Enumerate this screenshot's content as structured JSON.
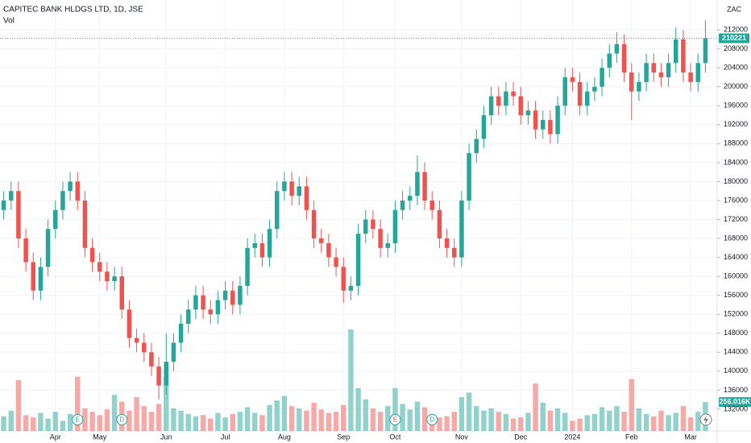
{
  "chart_data": {
    "type": "candlestick",
    "title": "CAPITEC BANK HLDGS LTD, 1D, JSE",
    "volume_label": "Vol",
    "currency": "ZAC",
    "up_color": "#26a69a",
    "down_color": "#ef5350",
    "grid": true,
    "ylim": [
      127400,
      218300
    ],
    "yticks": [
      132000,
      136000,
      140000,
      144000,
      148000,
      152000,
      156000,
      160000,
      164000,
      168000,
      172000,
      176000,
      180000,
      184000,
      188000,
      192000,
      196000,
      200000,
      204000,
      208000,
      212000
    ],
    "vlim": [
      0,
      1000000
    ],
    "categories": [
      null,
      null,
      null,
      null,
      null,
      null,
      null,
      "Apr",
      null,
      null,
      null,
      null,
      null,
      "May",
      null,
      null,
      null,
      null,
      null,
      null,
      null,
      null,
      "Jun",
      null,
      null,
      null,
      null,
      null,
      null,
      null,
      "Jul",
      null,
      null,
      null,
      null,
      null,
      null,
      null,
      "Aug",
      null,
      null,
      null,
      null,
      null,
      null,
      null,
      "Sep",
      null,
      null,
      null,
      null,
      null,
      null,
      "Oct",
      null,
      null,
      null,
      null,
      null,
      null,
      null,
      null,
      "Nov",
      null,
      null,
      null,
      null,
      null,
      null,
      null,
      "Dec",
      null,
      null,
      null,
      null,
      null,
      null,
      "2024",
      null,
      null,
      null,
      null,
      null,
      null,
      null,
      "Feb",
      null,
      null,
      null,
      null,
      null,
      null,
      null,
      "Mar",
      null,
      null
    ],
    "open": [
      174000,
      176000,
      178000,
      168000,
      163000,
      157000,
      162000,
      170000,
      174000,
      178000,
      180000,
      176000,
      166000,
      163000,
      161000,
      159000,
      160000,
      153000,
      147000,
      146000,
      144000,
      141000,
      137000,
      142000,
      146000,
      150000,
      153000,
      156000,
      153000,
      152000,
      155000,
      157000,
      154000,
      158000,
      166000,
      167000,
      164000,
      170000,
      178000,
      180000,
      177000,
      179000,
      174000,
      168000,
      167000,
      164000,
      162000,
      157000,
      158000,
      169000,
      172000,
      170000,
      166000,
      167000,
      174000,
      176000,
      177000,
      182000,
      176000,
      174000,
      168000,
      166000,
      164000,
      176000,
      186000,
      189000,
      194000,
      198000,
      196000,
      199000,
      198000,
      194000,
      195000,
      191000,
      193000,
      190000,
      196000,
      202000,
      201000,
      196000,
      199000,
      200000,
      204000,
      207000,
      209000,
      203000,
      199000,
      201000,
      205000,
      203000,
      202000,
      205000,
      210000,
      203000,
      201000,
      205000
    ],
    "high": [
      178000,
      180000,
      180000,
      170000,
      165000,
      164000,
      172000,
      176000,
      180000,
      182000,
      182000,
      178000,
      168000,
      165000,
      163000,
      162000,
      162000,
      155000,
      149000,
      148000,
      146000,
      143000,
      148000,
      148000,
      152000,
      155000,
      158000,
      158000,
      155000,
      157000,
      159000,
      159000,
      160000,
      168000,
      169000,
      169000,
      172000,
      180000,
      182000,
      182000,
      181000,
      181000,
      176000,
      170000,
      169000,
      166000,
      164000,
      160000,
      171000,
      174000,
      174000,
      172000,
      169000,
      176000,
      178000,
      179000,
      185500,
      184000,
      178000,
      176000,
      170000,
      168000,
      178000,
      188000,
      191000,
      196000,
      200000,
      200000,
      201000,
      201000,
      200000,
      197000,
      197000,
      195000,
      195000,
      198000,
      204000,
      204000,
      203000,
      201000,
      202000,
      206000,
      209000,
      211500,
      211000,
      205000,
      203000,
      207000,
      207000,
      205000,
      207000,
      212500,
      212000,
      205000,
      207000,
      214000
    ],
    "low": [
      172000,
      174000,
      166000,
      161000,
      155000,
      155000,
      160000,
      168000,
      172000,
      176000,
      174000,
      164000,
      161000,
      159000,
      157000,
      157000,
      151000,
      145000,
      144000,
      142000,
      139000,
      134000,
      135000,
      140000,
      144000,
      148000,
      151000,
      151000,
      150000,
      150000,
      153000,
      152000,
      152000,
      156000,
      164000,
      162000,
      162000,
      168000,
      176000,
      175000,
      175000,
      172000,
      166000,
      165000,
      162000,
      160000,
      154500,
      155000,
      156000,
      167000,
      168000,
      164000,
      164000,
      165000,
      172000,
      174000,
      175000,
      174000,
      172000,
      166000,
      164000,
      162000,
      162000,
      174000,
      184000,
      187000,
      192000,
      194000,
      194000,
      196000,
      192000,
      192000,
      189000,
      189000,
      188000,
      188000,
      194000,
      199000,
      194000,
      194000,
      197000,
      198000,
      202000,
      205000,
      201000,
      193000,
      197000,
      199000,
      201000,
      200000,
      200000,
      203000,
      201000,
      199000,
      199000,
      203000
    ],
    "close": [
      176000,
      178000,
      168000,
      163000,
      157000,
      162000,
      170000,
      174000,
      178000,
      180000,
      176000,
      166000,
      163000,
      161000,
      159000,
      160000,
      153000,
      147000,
      146000,
      144000,
      141000,
      137000,
      142000,
      146000,
      150000,
      153000,
      156000,
      153000,
      152000,
      155000,
      157000,
      154000,
      158000,
      166000,
      167000,
      164000,
      170000,
      178000,
      180000,
      177000,
      179000,
      174000,
      168000,
      167000,
      164000,
      162000,
      157000,
      158000,
      169000,
      172000,
      170000,
      166000,
      167000,
      174000,
      176000,
      177000,
      182000,
      176000,
      174000,
      168000,
      166000,
      164000,
      176000,
      186000,
      189000,
      194000,
      198000,
      196000,
      199000,
      198000,
      194000,
      195000,
      191000,
      193000,
      190000,
      196000,
      202000,
      201000,
      196000,
      199000,
      200000,
      204000,
      207000,
      209000,
      203000,
      199000,
      201000,
      205000,
      203000,
      202000,
      205000,
      210000,
      203000,
      201000,
      205000,
      210221
    ],
    "volume": [
      130000,
      180000,
      450000,
      140000,
      120000,
      160000,
      110000,
      170000,
      90000,
      150000,
      480000,
      200000,
      170000,
      140000,
      190000,
      320000,
      260000,
      180000,
      300000,
      220000,
      170000,
      240000,
      480000,
      200000,
      180000,
      150000,
      130000,
      140000,
      110000,
      160000,
      120000,
      150000,
      170000,
      210000,
      160000,
      140000,
      230000,
      270000,
      310000,
      220000,
      200000,
      180000,
      250000,
      190000,
      160000,
      170000,
      230000,
      900000,
      380000,
      280000,
      200000,
      170000,
      220000,
      380000,
      240000,
      190000,
      260000,
      210000,
      150000,
      120000,
      130000,
      170000,
      300000,
      340000,
      220000,
      180000,
      200000,
      170000,
      150000,
      110000,
      120000,
      160000,
      420000,
      250000,
      180000,
      200000,
      160000,
      90000,
      110000,
      140000,
      150000,
      210000,
      180000,
      220000,
      170000,
      460000,
      200000,
      150000,
      130000,
      180000,
      140000,
      160000,
      220000,
      120000,
      170000,
      256016
    ],
    "last_volume_label": "256.016K",
    "events": [
      {
        "label": "E",
        "index": 10
      },
      {
        "label": "D",
        "index": 16
      },
      {
        "label": "E",
        "index": 53
      },
      {
        "label": "D",
        "index": 58
      }
    ]
  }
}
